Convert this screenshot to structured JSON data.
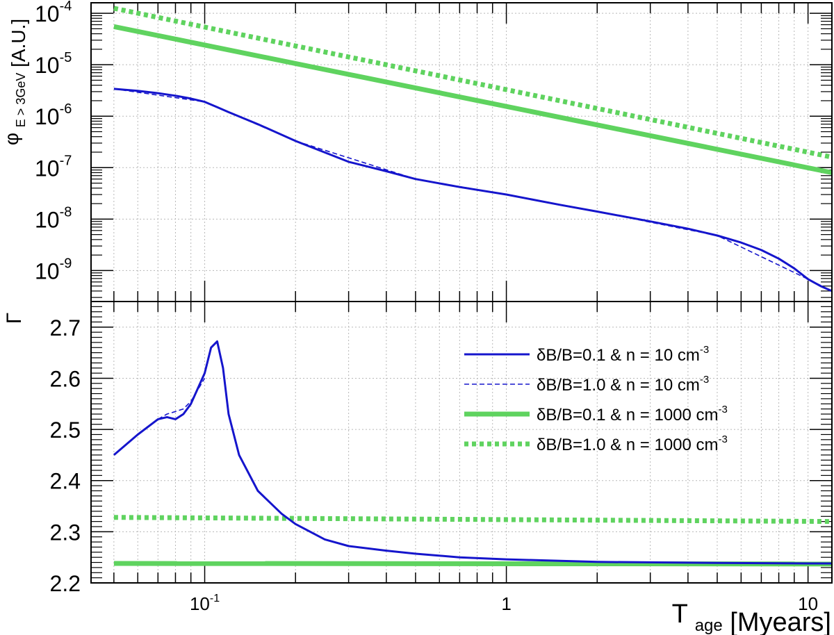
{
  "chart_data": [
    {
      "type": "line",
      "panel": "top",
      "ylabel": "φ",
      "ylabel_sub": "E > 3GeV",
      "ylabel_unit": "[A.U.]",
      "x_scale": "log",
      "y_scale": "log",
      "xlim": [
        0.042,
        12
      ],
      "ylim": [
        2.5e-10,
        0.00016
      ],
      "y_ticks": [
        {
          "v": 0.0001,
          "base": "10",
          "exp": "-4"
        },
        {
          "v": 1e-05,
          "base": "10",
          "exp": "-5"
        },
        {
          "v": 1e-06,
          "base": "10",
          "exp": "-6"
        },
        {
          "v": 1e-07,
          "base": "10",
          "exp": "-7"
        },
        {
          "v": 1e-08,
          "base": "10",
          "exp": "-8"
        },
        {
          "v": 1e-09,
          "base": "10",
          "exp": "-9"
        }
      ],
      "grid": true,
      "series": [
        {
          "name": "δB/B=0.1 & n = 10 cm-3",
          "color": "#1515cc",
          "style": "solid-thin",
          "x": [
            0.05,
            0.06,
            0.07,
            0.08,
            0.09,
            0.1,
            0.11,
            0.12,
            0.15,
            0.2,
            0.3,
            0.4,
            0.5,
            0.7,
            1,
            1.5,
            2,
            3,
            4,
            5,
            6,
            7,
            8,
            9,
            10,
            11,
            12
          ],
          "y": [
            3.4e-06,
            3.1e-06,
            2.8e-06,
            2.5e-06,
            2.2e-06,
            1.9e-06,
            1.5e-06,
            1.2e-06,
            7e-07,
            3.3e-07,
            1.3e-07,
            8.5e-08,
            6e-08,
            4.2e-08,
            3e-08,
            1.9e-08,
            1.4e-08,
            9e-09,
            6.5e-09,
            4.8e-09,
            3.5e-09,
            2.5e-09,
            1.7e-09,
            1.1e-09,
            6.8e-10,
            5e-10,
            4e-10
          ]
        },
        {
          "name": "δB/B=1.0 & n = 10 cm-3",
          "color": "#1515cc",
          "style": "dashed-thin",
          "x": [
            0.05,
            0.1,
            0.2,
            0.5,
            1,
            2,
            5,
            10,
            12
          ],
          "y": [
            3.4e-06,
            1.9e-06,
            3.3e-07,
            6e-08,
            3e-08,
            1.4e-08,
            4.8e-09,
            6.8e-10,
            4e-10
          ]
        },
        {
          "name": "δB/B=0.1 & n = 1000 cm-3",
          "color": "#5fd35f",
          "style": "solid-thick",
          "x": [
            0.05,
            12
          ],
          "y": [
            5.5e-05,
            8e-08
          ]
        },
        {
          "name": "δB/B=1.0 & n = 1000 cm-3",
          "color": "#5fd35f",
          "style": "dotted-thick",
          "x": [
            0.05,
            12
          ],
          "y": [
            0.000125,
            1.6e-07
          ]
        }
      ]
    },
    {
      "type": "line",
      "panel": "bottom",
      "ylabel": "Γ",
      "xlabel": "T",
      "xlabel_sub": "age",
      "xlabel_unit": "[Myears]",
      "x_scale": "log",
      "y_scale": "linear",
      "xlim": [
        0.042,
        12
      ],
      "ylim": [
        2.2,
        2.75
      ],
      "y_ticks": [
        "2.2",
        "2.3",
        "2.4",
        "2.5",
        "2.6",
        "2.7"
      ],
      "x_ticks": [
        {
          "v": 0.1,
          "base": "10",
          "exp": "-1"
        },
        {
          "v": 1,
          "base": "1",
          "exp": ""
        },
        {
          "v": 10,
          "base": "10",
          "exp": ""
        }
      ],
      "grid": true,
      "legend_position": "right",
      "series": [
        {
          "name": "δB/B=0.1 & n = 10 cm-3",
          "color": "#1515cc",
          "style": "solid-thin",
          "x": [
            0.05,
            0.06,
            0.07,
            0.075,
            0.08,
            0.085,
            0.09,
            0.1,
            0.105,
            0.11,
            0.115,
            0.12,
            0.13,
            0.15,
            0.18,
            0.2,
            0.25,
            0.3,
            0.4,
            0.5,
            0.7,
            1,
            2,
            5,
            10,
            12
          ],
          "y": [
            2.45,
            2.49,
            2.52,
            2.524,
            2.52,
            2.53,
            2.55,
            2.61,
            2.66,
            2.672,
            2.62,
            2.53,
            2.45,
            2.38,
            2.335,
            2.315,
            2.285,
            2.272,
            2.263,
            2.257,
            2.25,
            2.246,
            2.241,
            2.239,
            2.238,
            2.238
          ]
        },
        {
          "name": "δB/B=1.0 & n = 10 cm-3",
          "color": "#1515cc",
          "style": "dashed-thin",
          "x": [
            0.07,
            0.075,
            0.08,
            0.085,
            0.09,
            0.1
          ],
          "y": [
            2.52,
            2.53,
            2.535,
            2.54,
            2.555,
            2.6
          ]
        },
        {
          "name": "δB/B=0.1 & n = 1000 cm-3",
          "color": "#5fd35f",
          "style": "solid-thick",
          "x": [
            0.05,
            12
          ],
          "y": [
            2.238,
            2.237
          ]
        },
        {
          "name": "δB/B=1.0 & n = 1000 cm-3",
          "color": "#5fd35f",
          "style": "dotted-thick",
          "x": [
            0.05,
            12
          ],
          "y": [
            2.328,
            2.32
          ]
        }
      ]
    }
  ],
  "legend": [
    {
      "text": "δB/B=0.1 & n = 10 cm",
      "sup": "-3",
      "color": "#1515cc",
      "style": "solid-thin"
    },
    {
      "text": "δB/B=1.0 & n = 10 cm",
      "sup": "-3",
      "color": "#1515cc",
      "style": "dashed-thin"
    },
    {
      "text": "δB/B=0.1 & n = 1000 cm",
      "sup": "-3",
      "color": "#5fd35f",
      "style": "solid-thick"
    },
    {
      "text": "δB/B=1.0 & n = 1000 cm",
      "sup": "-3",
      "color": "#5fd35f",
      "style": "dotted-thick"
    }
  ]
}
